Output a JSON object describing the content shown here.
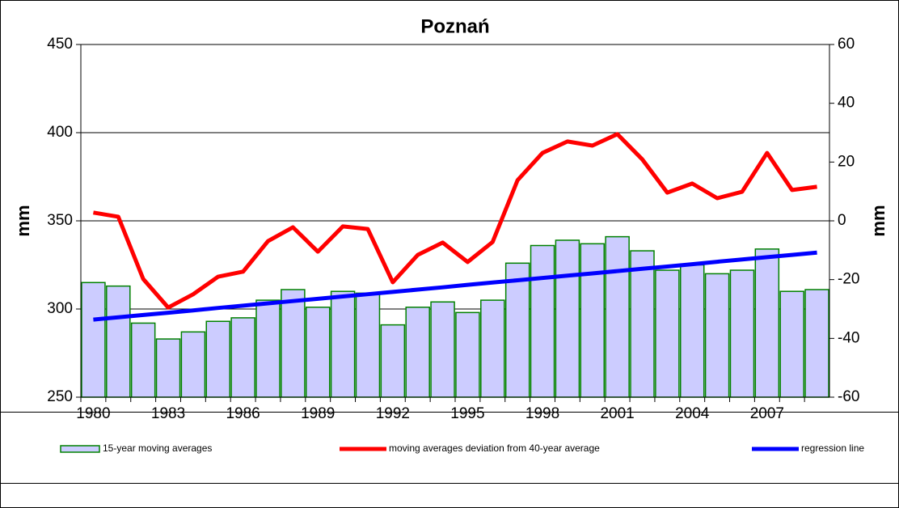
{
  "chart_data": {
    "type": "bar",
    "title": "Poznań",
    "ylabel": "mm",
    "y2label": "mm",
    "categories": [
      "1980",
      null,
      null,
      "1983",
      null,
      null,
      "1986",
      null,
      null,
      "1989",
      null,
      null,
      "1992",
      null,
      null,
      "1995",
      null,
      null,
      "1998",
      null,
      null,
      "2001",
      null,
      null,
      "2004",
      null,
      null,
      "2007",
      null,
      null
    ],
    "ylim": [
      250,
      450
    ],
    "yticks": [
      250,
      300,
      350,
      400,
      450
    ],
    "y2lim": [
      -60,
      60
    ],
    "y2ticks": [
      -60,
      -40,
      -20,
      0,
      20,
      40,
      60
    ],
    "grid": true,
    "legend": "bottom",
    "series": [
      {
        "name": "15-year moving averages",
        "type": "bar",
        "color": "#ccccff",
        "edgecolor": "#008000",
        "values": [
          315,
          313,
          292,
          283,
          287,
          293,
          295,
          305,
          311,
          301,
          310,
          309,
          291,
          301,
          304,
          298,
          305,
          326,
          336,
          339,
          337,
          341,
          333,
          322,
          325,
          320,
          322,
          334,
          310,
          311
        ]
      },
      {
        "name": "moving averages deviation from 40-year average",
        "type": "line",
        "axis": "y2",
        "color": "#ff0000",
        "values": [
          2.8,
          1.4,
          -19.8,
          -29.5,
          -25,
          -19,
          -17.3,
          -6.9,
          -2.2,
          -10.5,
          -1.9,
          -2.8,
          -20.9,
          -11.6,
          -7.4,
          -14,
          -7.2,
          13.8,
          23.1,
          27,
          25.6,
          29.5,
          20.9,
          9.6,
          12.7,
          7.7,
          9.9,
          23.1,
          10.5,
          11.6
        ]
      },
      {
        "name": "regression line",
        "type": "line",
        "color": "#0000ff",
        "values": [
          294,
          295.3,
          296.6,
          297.9,
          299.2,
          300.6,
          301.9,
          303.2,
          304.5,
          305.8,
          307.1,
          308.4,
          309.7,
          311,
          312.3,
          313.7,
          315,
          316.3,
          317.6,
          318.9,
          320.2,
          321.5,
          322.8,
          324.1,
          325.4,
          326.8,
          328.1,
          329.4,
          330.7,
          332
        ]
      }
    ]
  }
}
